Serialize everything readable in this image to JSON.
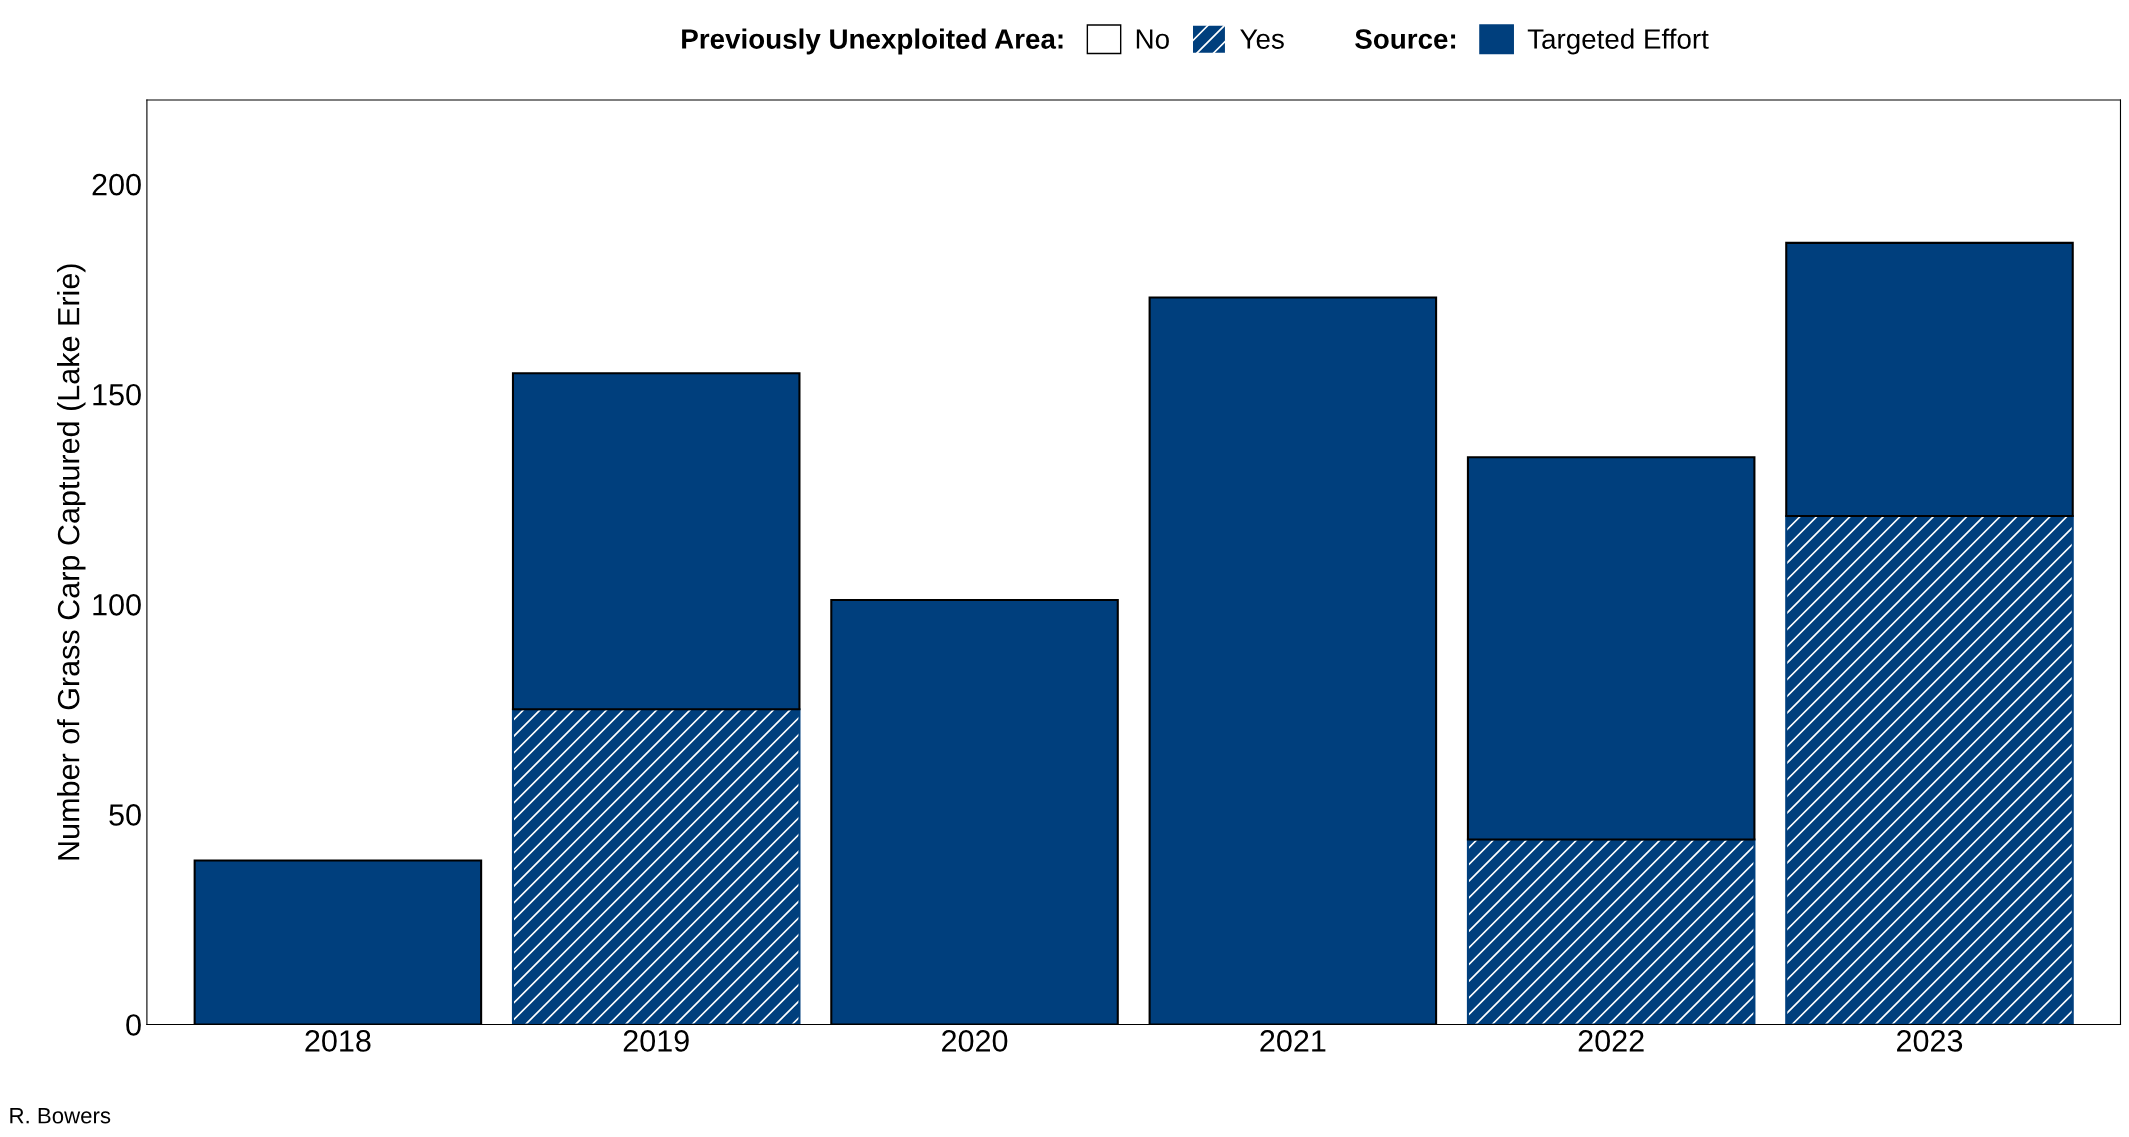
{
  "chart_data": {
    "type": "bar",
    "stacked": true,
    "ylabel": "Number of Grass Carp Captured (Lake Erie)",
    "categories": [
      "2018",
      "2019",
      "2020",
      "2021",
      "2022",
      "2023"
    ],
    "series": [
      {
        "name": "Yes",
        "color": "#003f7d",
        "values": [
          0,
          75,
          0,
          0,
          44,
          121
        ]
      },
      {
        "name": "No",
        "color": "#003f7d",
        "values": [
          39,
          80,
          101,
          173,
          91,
          65
        ]
      }
    ],
    "legend_title": [
      "Previously Unexploited Area:",
      "Source:"
    ],
    "ylim": [
      0,
      220
    ],
    "yticks": [
      0,
      50,
      100,
      150,
      200
    ],
    "grid": false,
    "legend": "top",
    "annotations": [
      "R. Bowers",
      "Targeted Effort"
    ]
  }
}
